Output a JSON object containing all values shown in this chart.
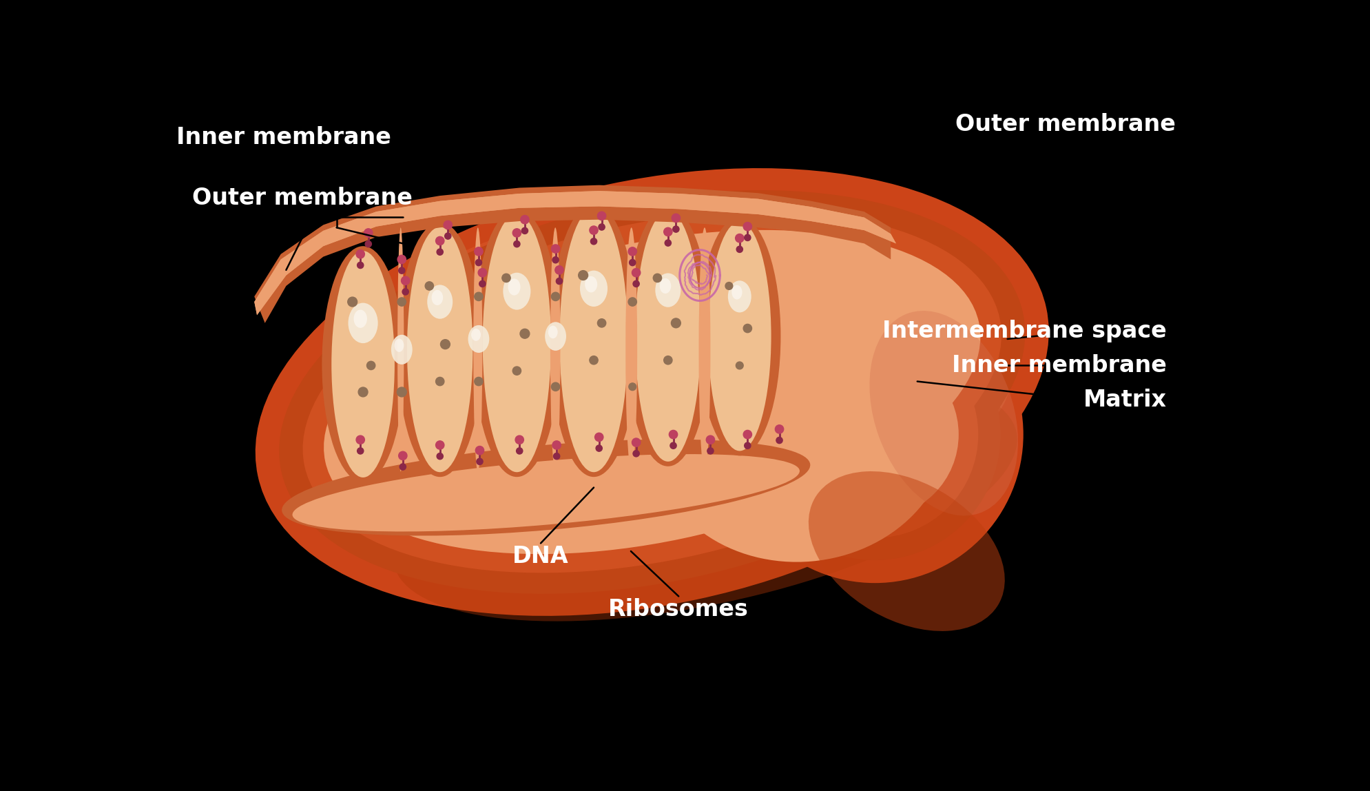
{
  "bg_color": "#000000",
  "c_outer": "#cc4418",
  "c_outer_sheen": "#e06030",
  "c_outer_dark": "#b83010",
  "c_intermem": "#c04515",
  "c_inner": "#c84010",
  "c_matrix": "#eda070",
  "c_crista_wall": "#c86030",
  "c_crista_lumen": "#f0c090",
  "c_crista_gap": "#b84020",
  "c_gran_white": "#f5ead8",
  "c_gran_brown": "#907055",
  "c_gran_brown2": "#a08060",
  "c_dna": "#c868a8",
  "c_ribo_dark": "#8b2848",
  "c_ribo_light": "#be4060",
  "c_shine": "#d87050",
  "label_fontsize": 24,
  "labels": {
    "inner_membrane": "Inner membrane",
    "outer_membrane": "Outer membrane",
    "intermembrane_space": "Intermembrane space",
    "matrix": "Matrix",
    "dna": "DNA",
    "ribosomes": "Ribosomes"
  }
}
